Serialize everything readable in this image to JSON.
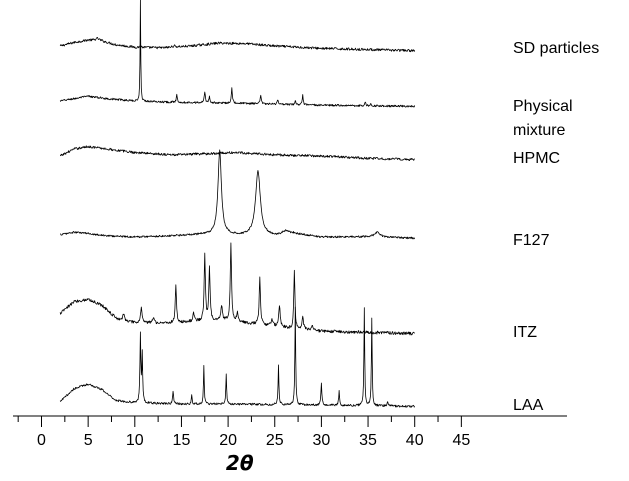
{
  "chart_data": {
    "type": "line",
    "title": "",
    "xlabel": "2θ",
    "ylabel": "",
    "xlim": [
      -2,
      45
    ],
    "xticks": [
      0,
      5,
      10,
      15,
      20,
      25,
      30,
      35,
      40,
      45
    ],
    "grid": false,
    "legend": "none (labels at right end of each trace)",
    "series": [
      {
        "name": "SD particles",
        "label_lines": [
          "SD particles"
        ],
        "baseline": 5,
        "noise": 1.0,
        "background": [
          [
            2,
            5
          ],
          [
            3.5,
            8
          ],
          [
            5,
            10
          ],
          [
            6.5,
            9
          ],
          [
            8,
            6
          ],
          [
            10,
            4
          ],
          [
            13,
            3.5
          ],
          [
            16,
            5
          ],
          [
            19,
            7.5
          ],
          [
            22,
            7
          ],
          [
            25,
            5
          ],
          [
            30,
            3
          ],
          [
            35,
            2
          ],
          [
            40,
            1
          ]
        ],
        "peaks": [
          [
            6.0,
            2,
            0.3
          ],
          [
            10.6,
            2,
            0.06
          ],
          [
            14.2,
            1,
            0.2
          ]
        ]
      },
      {
        "name": "Physical mixture",
        "label_lines": [
          "Physical",
          "mixture"
        ],
        "baseline": 5,
        "noise": 0.8,
        "background": [
          [
            2,
            5
          ],
          [
            3.5,
            7
          ],
          [
            5,
            9
          ],
          [
            7,
            7
          ],
          [
            10,
            5
          ],
          [
            14,
            4
          ],
          [
            18,
            3.5
          ],
          [
            22,
            3
          ],
          [
            26,
            2
          ],
          [
            30,
            1.5
          ],
          [
            35,
            1
          ],
          [
            40,
            0.5
          ]
        ],
        "peaks": [
          [
            10.6,
            85,
            0.04
          ],
          [
            14.5,
            6,
            0.07
          ],
          [
            17.5,
            9,
            0.07
          ],
          [
            18.0,
            6,
            0.06
          ],
          [
            20.4,
            13,
            0.07
          ],
          [
            23.5,
            7,
            0.07
          ],
          [
            25.3,
            4,
            0.08
          ],
          [
            27.2,
            3,
            0.08
          ],
          [
            28.0,
            8,
            0.06
          ],
          [
            34.7,
            3,
            0.06
          ],
          [
            35.3,
            2,
            0.05
          ]
        ]
      },
      {
        "name": "HPMC",
        "label_lines": [
          "HPMC"
        ],
        "baseline": 4,
        "noise": 1.0,
        "background": [
          [
            2,
            4
          ],
          [
            3.5,
            10
          ],
          [
            5,
            12
          ],
          [
            7,
            10
          ],
          [
            10,
            7
          ],
          [
            14,
            5
          ],
          [
            18,
            6
          ],
          [
            21,
            7
          ],
          [
            25,
            5
          ],
          [
            30,
            4
          ],
          [
            35,
            2
          ],
          [
            40,
            1
          ]
        ],
        "peaks": []
      },
      {
        "name": "F127",
        "label_lines": [
          "F127"
        ],
        "baseline": 2,
        "noise": 0.8,
        "background": [
          [
            2,
            4
          ],
          [
            3.5,
            6
          ],
          [
            5,
            5
          ],
          [
            7,
            3
          ],
          [
            10,
            2
          ],
          [
            14,
            3
          ],
          [
            17,
            4
          ],
          [
            21,
            3.5
          ],
          [
            25,
            3
          ],
          [
            27,
            5
          ],
          [
            30,
            2
          ],
          [
            35,
            2
          ],
          [
            40,
            1
          ]
        ],
        "peaks": [
          [
            19.1,
            71,
            0.22
          ],
          [
            23.2,
            55,
            0.3
          ],
          [
            26.2,
            3,
            0.4
          ],
          [
            36.0,
            4,
            0.4
          ]
        ]
      },
      {
        "name": "ITZ",
        "label_lines": [
          "ITZ"
        ],
        "baseline": 4,
        "noise": 1.3,
        "background": [
          [
            2,
            18
          ],
          [
            3.5,
            28
          ],
          [
            5,
            30
          ],
          [
            6.5,
            25
          ],
          [
            8,
            14
          ],
          [
            10,
            10
          ],
          [
            14,
            10
          ],
          [
            18,
            12
          ],
          [
            20,
            12
          ],
          [
            22,
            10
          ],
          [
            26,
            6
          ],
          [
            30,
            3
          ],
          [
            35,
            2
          ],
          [
            40,
            1
          ]
        ],
        "peaks": [
          [
            8.8,
            5,
            0.1
          ],
          [
            10.7,
            13,
            0.1
          ],
          [
            12.0,
            5,
            0.1
          ],
          [
            14.4,
            31,
            0.08
          ],
          [
            16.3,
            7,
            0.1
          ],
          [
            17.5,
            55,
            0.08
          ],
          [
            18.0,
            44,
            0.08
          ],
          [
            19.3,
            13,
            0.1
          ],
          [
            20.3,
            66,
            0.08
          ],
          [
            21.0,
            7,
            0.1
          ],
          [
            23.4,
            40,
            0.08
          ],
          [
            24.7,
            6,
            0.1
          ],
          [
            25.5,
            18,
            0.1
          ],
          [
            27.1,
            50,
            0.07
          ],
          [
            28.0,
            10,
            0.1
          ],
          [
            29.0,
            4,
            0.1
          ]
        ]
      },
      {
        "name": "LAA",
        "label_lines": [
          "LAA"
        ],
        "baseline": 3,
        "noise": 0.9,
        "background": [
          [
            2,
            5
          ],
          [
            3.5,
            16
          ],
          [
            5,
            20
          ],
          [
            6.5,
            15
          ],
          [
            8,
            6
          ],
          [
            10,
            4
          ],
          [
            15,
            3
          ],
          [
            20,
            3
          ],
          [
            25,
            2.5
          ],
          [
            30,
            2
          ],
          [
            35,
            1.5
          ],
          [
            40,
            1
          ]
        ],
        "peaks": [
          [
            10.6,
            57,
            0.06
          ],
          [
            10.8,
            40,
            0.05
          ],
          [
            14.1,
            11,
            0.06
          ],
          [
            16.1,
            7,
            0.05
          ],
          [
            17.4,
            32,
            0.05
          ],
          [
            19.8,
            26,
            0.05
          ],
          [
            25.4,
            34,
            0.05
          ],
          [
            27.2,
            82,
            0.05
          ],
          [
            30.0,
            18,
            0.06
          ],
          [
            31.9,
            12,
            0.06
          ],
          [
            34.6,
            82,
            0.05
          ],
          [
            35.4,
            74,
            0.05
          ],
          [
            37.1,
            4,
            0.08
          ]
        ]
      }
    ]
  }
}
